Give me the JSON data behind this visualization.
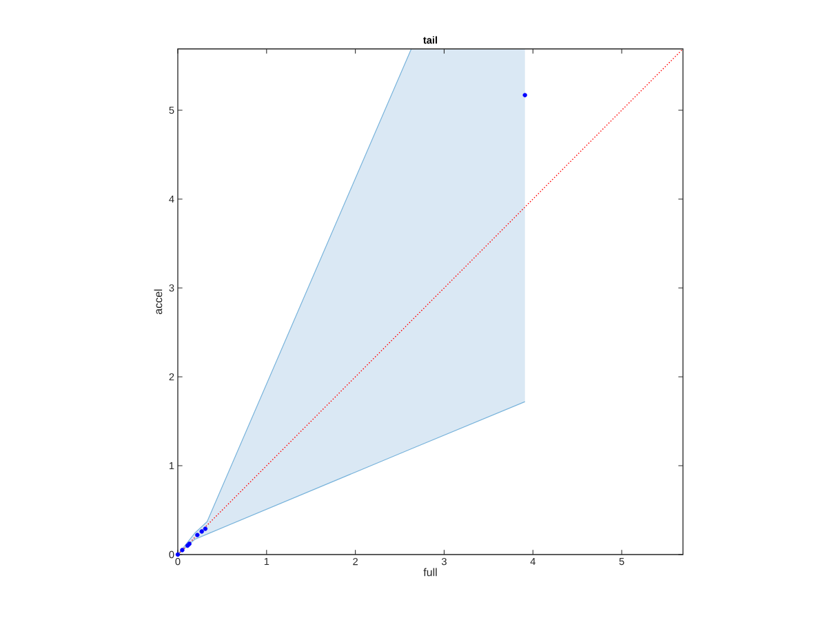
{
  "chart_data": {
    "type": "scatter",
    "title": "tail",
    "xlabel": "full",
    "ylabel": "accel",
    "xlim": [
      0,
      5.69
    ],
    "ylim": [
      0,
      5.69
    ],
    "xticks": [
      0,
      1,
      2,
      3,
      4,
      5
    ],
    "yticks": [
      0,
      1,
      2,
      3,
      4,
      5
    ],
    "grid": false,
    "series": [
      {
        "type": "area",
        "color": "#dae8f4",
        "x": [
          0,
          0.19,
          0.33,
          2.63,
          3.91
        ],
        "values": [
          null,
          null,
          null,
          null,
          null
        ],
        "lower": [
          0,
          0.17,
          0.23,
          1.19,
          1.72
        ],
        "upper": [
          0,
          0.24,
          0.37,
          5.69,
          5.69
        ]
      },
      {
        "type": "line",
        "color": "#ff0000",
        "line_style": "dotted",
        "marker": "none",
        "x": [
          0,
          5.69
        ],
        "values": [
          0,
          5.69
        ]
      },
      {
        "type": "scatter",
        "color": "#0000ff",
        "marker": "circle",
        "x": [
          0,
          0.05,
          0.11,
          0.13,
          0.22,
          0.27,
          0.31,
          3.91
        ],
        "values": [
          0,
          0.05,
          0.1,
          0.12,
          0.22,
          0.26,
          0.29,
          5.17
        ]
      }
    ]
  }
}
